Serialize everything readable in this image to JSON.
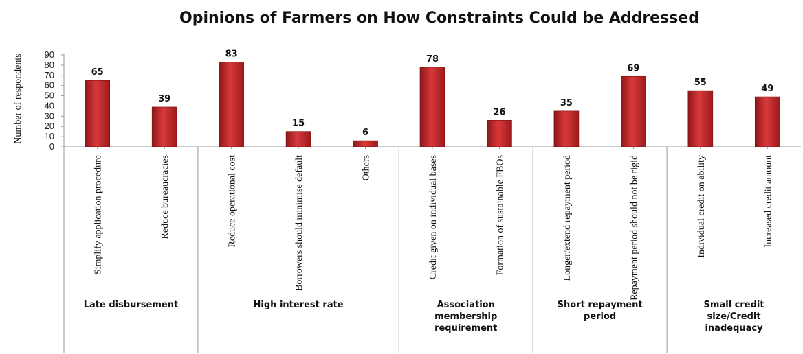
{
  "chart_data": {
    "type": "bar",
    "title": "Opinions of Farmers on How Constraints Could be Addressed",
    "ylabel": "Number of respondents",
    "xlabel": "",
    "ylim": [
      0,
      90
    ],
    "yticks": [
      0,
      10,
      20,
      30,
      40,
      50,
      60,
      70,
      80,
      90
    ],
    "grid": false,
    "legend": "none",
    "bar_color": "#c0282a",
    "categories": [
      "Simplify application procedure",
      "Reduce bureaucracies",
      "Reduce  operational cost",
      "Borrowers should minimise default",
      "Others",
      "Credit given on individual bases",
      "Formation of sustainable FBOs",
      "Longer/extend repayment period",
      "Repayment period should not be rigid",
      "Individual credit on ability",
      "Increased credit amount"
    ],
    "values": [
      65,
      39,
      83,
      15,
      6,
      78,
      26,
      35,
      69,
      55,
      49
    ],
    "groups": [
      {
        "lines": [
          "Late disbursement"
        ],
        "count": 2
      },
      {
        "lines": [
          "High interest rate"
        ],
        "count": 3
      },
      {
        "lines": [
          "Association",
          "membership",
          "requirement"
        ],
        "count": 2
      },
      {
        "lines": [
          "Short repayment",
          "period"
        ],
        "count": 2
      },
      {
        "lines": [
          "Small credit",
          "size/Credit",
          "inadequacy"
        ],
        "count": 2
      }
    ]
  }
}
